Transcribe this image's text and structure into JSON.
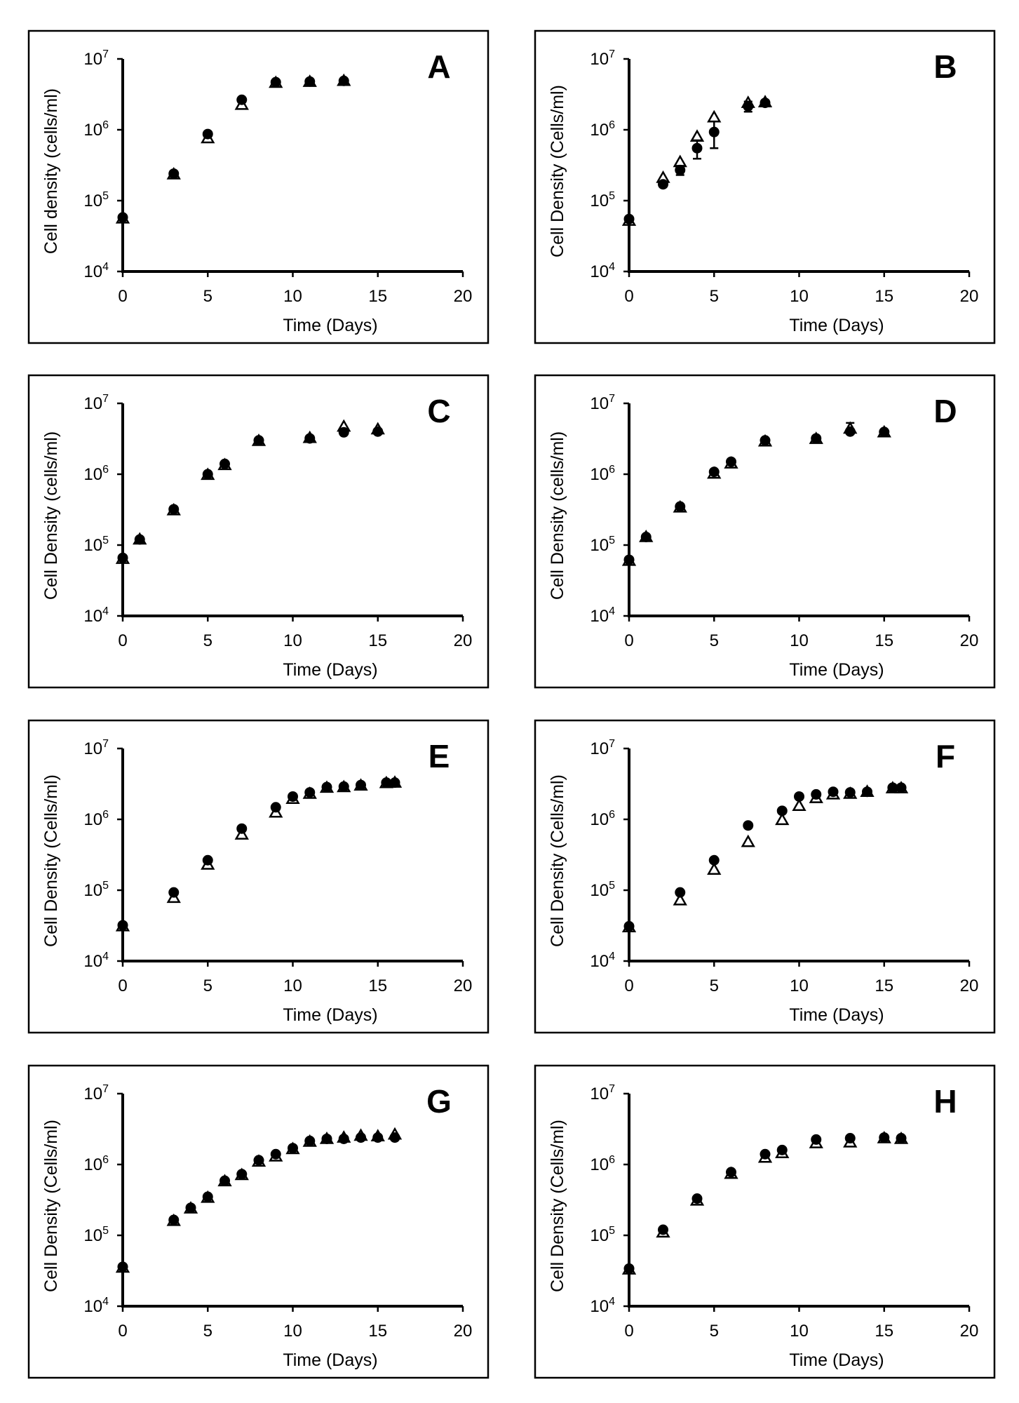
{
  "figure": {
    "legend_markers": {
      "series_1": "filled-circle",
      "series_2": "open-triangle"
    }
  },
  "chart_data": [
    {
      "type": "scatter",
      "panel": "A",
      "xlabel": "Time (Days)",
      "ylabel": "Cell density (cells/ml)",
      "xlim": [
        0,
        20
      ],
      "xticks": [
        "0",
        "5",
        "10",
        "15",
        "20"
      ],
      "ylim": [
        10000,
        10000000
      ],
      "yscale": "log",
      "yticks": [
        "4",
        "5",
        "6",
        "7"
      ],
      "series": [
        {
          "name": "filled-circle",
          "x": [
            0,
            3,
            5,
            7,
            9,
            11,
            13
          ],
          "values": [
            58000,
            240000,
            870000,
            2650000,
            4700000,
            4800000,
            4900000
          ],
          "err": [
            0,
            0,
            0,
            0,
            0,
            0,
            0
          ]
        },
        {
          "name": "open-triangle",
          "x": [
            0,
            3,
            5,
            7,
            9,
            11,
            13
          ],
          "values": [
            56000,
            235000,
            760000,
            2250000,
            4600000,
            4750000,
            4900000
          ],
          "err": [
            0,
            0,
            0,
            0,
            0,
            0,
            0
          ]
        }
      ]
    },
    {
      "type": "scatter",
      "panel": "B",
      "xlabel": "Time (Days)",
      "ylabel": "Cell Density (Cells/ml)",
      "xlim": [
        0,
        20
      ],
      "xticks": [
        "0",
        "5",
        "10",
        "15",
        "20"
      ],
      "ylim": [
        10000,
        10000000
      ],
      "yscale": "log",
      "yticks": [
        "4",
        "5",
        "6",
        "7"
      ],
      "series": [
        {
          "name": "filled-circle",
          "x": [
            0,
            2,
            3,
            4,
            5,
            7,
            8
          ],
          "values": [
            55000,
            170000,
            270000,
            550000,
            930000,
            2150000,
            2400000
          ],
          "err": [
            0,
            0,
            40000,
            160000,
            380000,
            350000,
            0
          ]
        },
        {
          "name": "open-triangle",
          "x": [
            0,
            2,
            3,
            4,
            5,
            7,
            8
          ],
          "values": [
            52000,
            210000,
            350000,
            800000,
            1500000,
            2400000,
            2450000
          ],
          "err": [
            0,
            0,
            0,
            0,
            0,
            0,
            0
          ]
        }
      ]
    },
    {
      "type": "scatter",
      "panel": "C",
      "xlabel": "Time (Days)",
      "ylabel": "Cell Density (cells/ml)",
      "xlim": [
        0,
        20
      ],
      "xticks": [
        "0",
        "5",
        "10",
        "15",
        "20"
      ],
      "ylim": [
        10000,
        10000000
      ],
      "yscale": "log",
      "yticks": [
        "4",
        "5",
        "6",
        "7"
      ],
      "series": [
        {
          "name": "filled-circle",
          "x": [
            0,
            1,
            3,
            5,
            6,
            8,
            11,
            13,
            15
          ],
          "values": [
            66000,
            120000,
            320000,
            1000000,
            1400000,
            3000000,
            3200000,
            3900000,
            4000000
          ],
          "err": [
            0,
            0,
            0,
            0,
            0,
            0,
            0,
            0,
            0
          ]
        },
        {
          "name": "open-triangle",
          "x": [
            0,
            1,
            3,
            5,
            6,
            8,
            11,
            13,
            15
          ],
          "values": [
            64000,
            120000,
            310000,
            980000,
            1350000,
            2950000,
            3250000,
            4700000,
            4300000
          ],
          "err": [
            0,
            0,
            0,
            0,
            0,
            0,
            0,
            0,
            0
          ]
        }
      ]
    },
    {
      "type": "scatter",
      "panel": "D",
      "xlabel": "Time (Days)",
      "ylabel": "Cell Density (cells/ml)",
      "xlim": [
        0,
        20
      ],
      "xticks": [
        "0",
        "5",
        "10",
        "15",
        "20"
      ],
      "ylim": [
        10000,
        10000000
      ],
      "yscale": "log",
      "yticks": [
        "4",
        "5",
        "6",
        "7"
      ],
      "series": [
        {
          "name": "filled-circle",
          "x": [
            0,
            1,
            3,
            5,
            6,
            8,
            11,
            13,
            15
          ],
          "values": [
            62000,
            130000,
            350000,
            1080000,
            1500000,
            3000000,
            3200000,
            4000000,
            3950000
          ],
          "err": [
            0,
            0,
            0,
            0,
            0,
            0,
            0,
            0,
            0
          ]
        },
        {
          "name": "open-triangle",
          "x": [
            0,
            1,
            3,
            5,
            6,
            8,
            11,
            13,
            15
          ],
          "values": [
            60000,
            130000,
            340000,
            1020000,
            1420000,
            2900000,
            3150000,
            4400000,
            3900000
          ],
          "err": [
            0,
            0,
            0,
            0,
            0,
            0,
            0,
            900000,
            0
          ]
        }
      ]
    },
    {
      "type": "scatter",
      "panel": "E",
      "xlabel": "Time (Days)",
      "ylabel": "Cell Density (Cells/ml)",
      "xlim": [
        0,
        20
      ],
      "xticks": [
        "0",
        "5",
        "10",
        "15",
        "20"
      ],
      "ylim": [
        10000,
        10000000
      ],
      "yscale": "log",
      "yticks": [
        "4",
        "5",
        "6",
        "7"
      ],
      "series": [
        {
          "name": "filled-circle",
          "x": [
            0,
            3,
            5,
            7,
            9,
            10,
            11,
            12,
            13,
            14,
            15.5,
            16
          ],
          "values": [
            32000,
            93000,
            265000,
            740000,
            1480000,
            2100000,
            2400000,
            2850000,
            2900000,
            3050000,
            3300000,
            3300000
          ],
          "err": [
            0,
            0,
            0,
            0,
            0,
            0,
            0,
            0,
            0,
            0,
            0,
            0
          ]
        },
        {
          "name": "open-triangle",
          "x": [
            0,
            3,
            5,
            7,
            9,
            10,
            11,
            12,
            13,
            14,
            15.5,
            16
          ],
          "values": [
            31000,
            78000,
            230000,
            610000,
            1250000,
            1950000,
            2300000,
            2800000,
            2850000,
            3000000,
            3250000,
            3300000
          ],
          "err": [
            0,
            0,
            0,
            0,
            0,
            0,
            0,
            0,
            0,
            0,
            0,
            0
          ]
        }
      ]
    },
    {
      "type": "scatter",
      "panel": "F",
      "xlabel": "Time (Days)",
      "ylabel": "Cell Density (Cells/ml)",
      "xlim": [
        0,
        20
      ],
      "xticks": [
        "0",
        "5",
        "10",
        "15",
        "20"
      ],
      "ylim": [
        10000,
        10000000
      ],
      "yscale": "log",
      "yticks": [
        "4",
        "5",
        "6",
        "7"
      ],
      "series": [
        {
          "name": "filled-circle",
          "x": [
            0,
            3,
            5,
            7,
            9,
            10,
            11,
            12,
            13,
            14,
            15.5,
            16
          ],
          "values": [
            31000,
            93000,
            265000,
            820000,
            1320000,
            2100000,
            2250000,
            2450000,
            2400000,
            2450000,
            2800000,
            2800000
          ],
          "err": [
            0,
            0,
            0,
            0,
            0,
            0,
            0,
            0,
            0,
            0,
            0,
            0
          ]
        },
        {
          "name": "open-triangle",
          "x": [
            0,
            3,
            5,
            7,
            9,
            10,
            11,
            12,
            13,
            14,
            15.5,
            16
          ],
          "values": [
            30000,
            72000,
            195000,
            480000,
            980000,
            1550000,
            2000000,
            2250000,
            2300000,
            2450000,
            2750000,
            2750000
          ],
          "err": [
            0,
            0,
            0,
            0,
            0,
            0,
            0,
            0,
            0,
            0,
            0,
            0
          ]
        }
      ]
    },
    {
      "type": "scatter",
      "panel": "G",
      "xlabel": "Time (Days)",
      "ylabel": "Cell Density (Cells/ml)",
      "xlim": [
        0,
        20
      ],
      "xticks": [
        "0",
        "5",
        "10",
        "15",
        "20"
      ],
      "ylim": [
        10000,
        10000000
      ],
      "yscale": "log",
      "yticks": [
        "4",
        "5",
        "6",
        "7"
      ],
      "series": [
        {
          "name": "filled-circle",
          "x": [
            0,
            3,
            4,
            5,
            6,
            7,
            8,
            9,
            10,
            11,
            12,
            13,
            14,
            15,
            16
          ],
          "values": [
            36000,
            165000,
            245000,
            350000,
            590000,
            730000,
            1150000,
            1400000,
            1700000,
            2150000,
            2300000,
            2300000,
            2400000,
            2400000,
            2400000
          ],
          "err": [
            0,
            0,
            0,
            0,
            0,
            0,
            0,
            0,
            0,
            0,
            0,
            0,
            0,
            0,
            0
          ]
        },
        {
          "name": "open-triangle",
          "x": [
            0,
            3,
            4,
            5,
            6,
            7,
            8,
            9,
            10,
            11,
            12,
            13,
            14,
            15,
            16
          ],
          "values": [
            35000,
            160000,
            240000,
            340000,
            580000,
            710000,
            1100000,
            1300000,
            1650000,
            2100000,
            2300000,
            2400000,
            2550000,
            2500000,
            2650000
          ],
          "err": [
            0,
            0,
            0,
            0,
            0,
            0,
            0,
            0,
            0,
            0,
            0,
            0,
            0,
            0,
            0
          ]
        }
      ]
    },
    {
      "type": "scatter",
      "panel": "H",
      "xlabel": "Time (Days)",
      "ylabel": "Cell Density (Cells/ml)",
      "xlim": [
        0,
        20
      ],
      "xticks": [
        "0",
        "5",
        "10",
        "15",
        "20"
      ],
      "ylim": [
        10000,
        10000000
      ],
      "yscale": "log",
      "yticks": [
        "4",
        "5",
        "6",
        "7"
      ],
      "series": [
        {
          "name": "filled-circle",
          "x": [
            0,
            2,
            4,
            6,
            8,
            9,
            11,
            13,
            15,
            16
          ],
          "values": [
            34000,
            120000,
            330000,
            780000,
            1400000,
            1600000,
            2250000,
            2350000,
            2400000,
            2350000
          ],
          "err": [
            0,
            0,
            0,
            0,
            0,
            0,
            0,
            0,
            0,
            0
          ]
        },
        {
          "name": "open-triangle",
          "x": [
            0,
            2,
            4,
            6,
            8,
            9,
            11,
            13,
            15,
            16
          ],
          "values": [
            33000,
            110000,
            310000,
            740000,
            1250000,
            1450000,
            2000000,
            2050000,
            2350000,
            2300000
          ],
          "err": [
            0,
            0,
            0,
            0,
            0,
            0,
            0,
            0,
            0,
            0
          ]
        }
      ]
    }
  ]
}
